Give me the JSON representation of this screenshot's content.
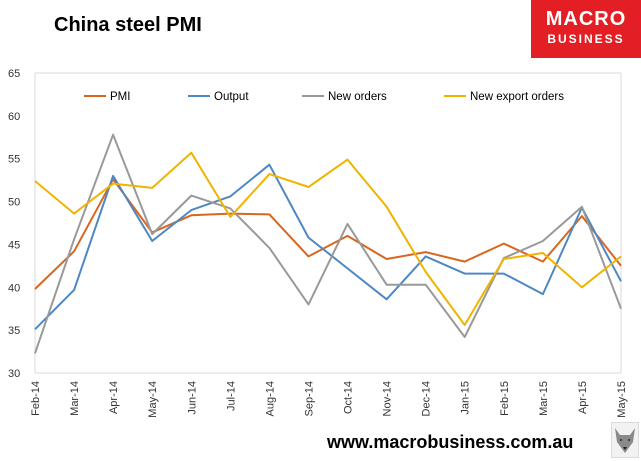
{
  "header": {
    "title": "China steel PMI"
  },
  "brand": {
    "line1": "MACRO",
    "line2": "BUSINESS",
    "color": "#e31e24"
  },
  "footer": {
    "url": "www.macrobusiness.com.au"
  },
  "chart_data": {
    "type": "line",
    "title": "China steel PMI",
    "xlabel": "",
    "ylabel": "",
    "ylim": [
      30,
      65
    ],
    "yticks": [
      30,
      35,
      40,
      45,
      50,
      55,
      60,
      65
    ],
    "grid": false,
    "legend_position": "top",
    "categories": [
      "Feb-14",
      "Mar-14",
      "Apr-14",
      "May-14",
      "Jun-14",
      "Jul-14",
      "Aug-14",
      "Sep-14",
      "Oct-14",
      "Nov-14",
      "Dec-14",
      "Jan-15",
      "Feb-15",
      "Mar-15",
      "Apr-15",
      "May-15"
    ],
    "series": [
      {
        "name": "PMI",
        "color": "#d9661f",
        "values": [
          39.8,
          44.2,
          52.6,
          46.4,
          48.4,
          48.6,
          48.5,
          43.6,
          46.0,
          43.3,
          44.1,
          43.0,
          45.1,
          43.0,
          48.3,
          42.5
        ]
      },
      {
        "name": "Output",
        "color": "#4f87c2",
        "values": [
          35.1,
          39.7,
          53.0,
          45.4,
          49.0,
          50.6,
          54.3,
          45.8,
          42.2,
          38.6,
          43.6,
          41.6,
          41.6,
          39.2,
          49.3,
          40.7
        ]
      },
      {
        "name": "New orders",
        "color": "#999999",
        "values": [
          32.3,
          45.6,
          57.8,
          46.2,
          50.7,
          49.2,
          44.6,
          38.0,
          47.4,
          40.3,
          40.3,
          34.2,
          43.4,
          45.4,
          49.4,
          37.5
        ]
      },
      {
        "name": "New export orders",
        "color": "#f0b400",
        "values": [
          52.4,
          48.6,
          52.1,
          51.6,
          55.7,
          48.2,
          53.2,
          51.7,
          54.9,
          49.4,
          41.8,
          35.6,
          43.3,
          44.0,
          40.0,
          43.6
        ]
      }
    ]
  }
}
